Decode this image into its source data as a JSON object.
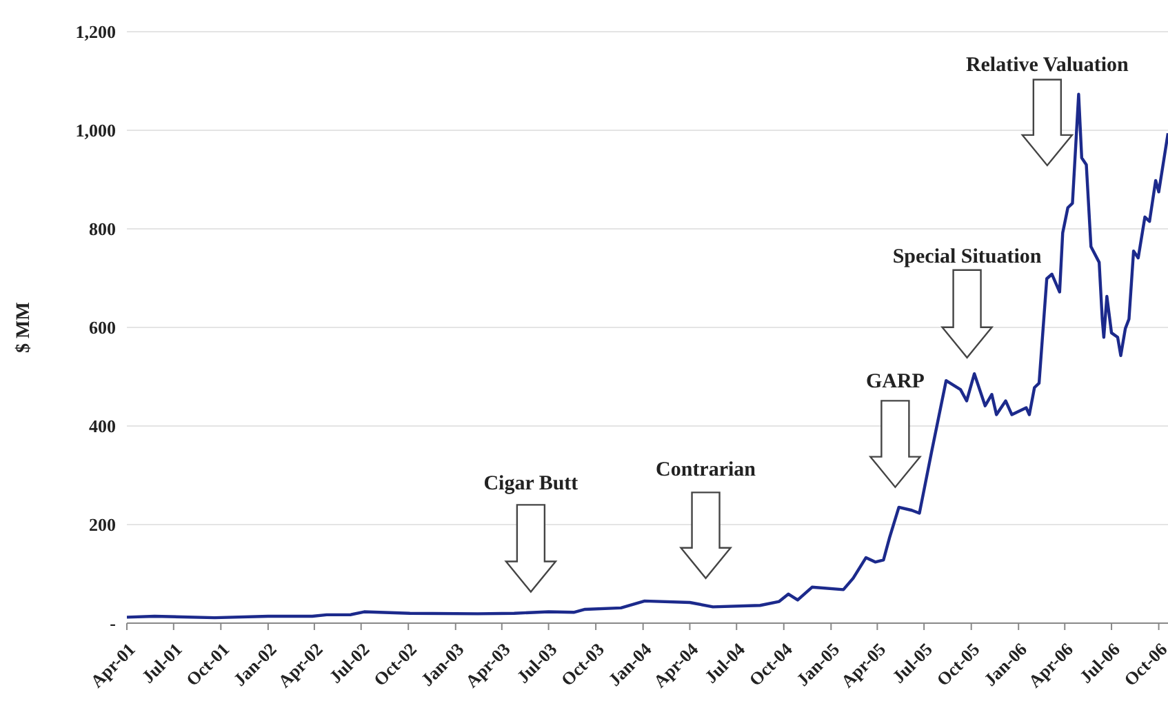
{
  "chart_data": {
    "type": "line",
    "ylabel": "$ MM",
    "x": [
      "2001-04-01",
      "2001-05-25",
      "2001-09-19",
      "2002-01-01",
      "2002-03-28",
      "2002-04-25",
      "2002-06-10",
      "2002-07-07",
      "2002-10-04",
      "2003-02-13",
      "2003-04-25",
      "2003-07-01",
      "2003-08-19",
      "2003-09-10",
      "2003-11-19",
      "2004-01-04",
      "2004-04-01",
      "2004-05-16",
      "2004-08-16",
      "2004-09-22",
      "2004-10-10",
      "2004-10-28",
      "2004-11-25",
      "2005-01-25",
      "2005-02-13",
      "2005-03-10",
      "2005-03-28",
      "2005-04-13",
      "2005-04-25",
      "2005-05-13",
      "2005-06-07",
      "2005-06-22",
      "2005-07-16",
      "2005-08-13",
      "2005-09-10",
      "2005-09-22",
      "2005-10-07",
      "2005-10-28",
      "2005-11-10",
      "2005-11-19",
      "2005-12-07",
      "2005-12-19",
      "2006-01-16",
      "2006-01-22",
      "2006-02-01",
      "2006-02-10",
      "2006-02-25",
      "2006-03-07",
      "2006-03-22",
      "2006-03-28",
      "2006-04-07",
      "2006-04-16",
      "2006-04-28",
      "2006-05-04",
      "2006-05-13",
      "2006-05-22",
      "2006-06-07",
      "2006-06-13",
      "2006-06-16",
      "2006-06-22",
      "2006-07-01",
      "2006-07-13",
      "2006-07-19",
      "2006-07-28",
      "2006-08-04",
      "2006-08-13",
      "2006-08-22",
      "2006-09-04",
      "2006-09-13",
      "2006-09-25",
      "2006-10-01",
      "2006-10-19"
    ],
    "series": [
      {
        "color": "#1c2a8c",
        "values": [
          12,
          14,
          11,
          14,
          14,
          17,
          17,
          23,
          20,
          19,
          20,
          23,
          22,
          28,
          31,
          45,
          42,
          33,
          36,
          44,
          59,
          47,
          73,
          68,
          91,
          133,
          124,
          128,
          174,
          235,
          229,
          223,
          349,
          492,
          474,
          451,
          506,
          441,
          464,
          423,
          451,
          423,
          437,
          423,
          478,
          487,
          699,
          708,
          672,
          792,
          843,
          852,
          1073,
          944,
          930,
          764,
          732,
          617,
          580,
          663,
          589,
          580,
          543,
          598,
          617,
          755,
          741,
          824,
          815,
          898,
          875,
          994
        ]
      }
    ],
    "xlim": [
      "2001-04-01",
      "2006-10-19"
    ],
    "xticks": [
      {
        "value": "2001-04",
        "label": "Apr-01"
      },
      {
        "value": "2001-07",
        "label": "Jul-01"
      },
      {
        "value": "2001-10",
        "label": "Oct-01"
      },
      {
        "value": "2002-01",
        "label": "Jan-02"
      },
      {
        "value": "2002-04",
        "label": "Apr-02"
      },
      {
        "value": "2002-07",
        "label": "Jul-02"
      },
      {
        "value": "2002-10",
        "label": "Oct-02"
      },
      {
        "value": "2003-01",
        "label": "Jan-03"
      },
      {
        "value": "2003-04",
        "label": "Apr-03"
      },
      {
        "value": "2003-07",
        "label": "Jul-03"
      },
      {
        "value": "2003-10",
        "label": "Oct-03"
      },
      {
        "value": "2004-01",
        "label": "Jan-04"
      },
      {
        "value": "2004-04",
        "label": "Apr-04"
      },
      {
        "value": "2004-07",
        "label": "Jul-04"
      },
      {
        "value": "2004-10",
        "label": "Oct-04"
      },
      {
        "value": "2005-01",
        "label": "Jan-05"
      },
      {
        "value": "2005-04",
        "label": "Apr-05"
      },
      {
        "value": "2005-07",
        "label": "Jul-05"
      },
      {
        "value": "2005-10",
        "label": "Oct-05"
      },
      {
        "value": "2006-01",
        "label": "Jan-06"
      },
      {
        "value": "2006-04",
        "label": "Apr-06"
      },
      {
        "value": "2006-07",
        "label": "Jul-06"
      },
      {
        "value": "2006-10",
        "label": "Oct-06"
      }
    ],
    "ylim": [
      0,
      1200
    ],
    "yticks": [
      {
        "value": 0,
        "label": "-"
      },
      200,
      400,
      600,
      800,
      {
        "value": 1000,
        "label": "1,000"
      },
      {
        "value": 1200,
        "label": "1,200"
      }
    ],
    "grid": "y",
    "marker": "none",
    "line_style": "solid",
    "annotations": [
      "Cigar Butt",
      "Contrarian",
      "GARP",
      "Special Situation",
      "Relative Valuation"
    ]
  }
}
